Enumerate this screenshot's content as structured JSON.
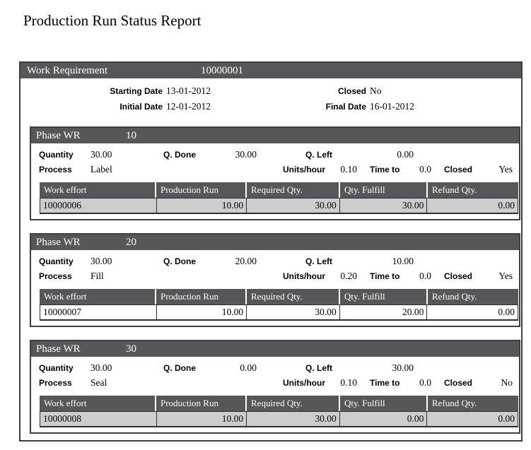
{
  "title": "Production Run Status Report",
  "work_requirement": {
    "label": "Work Requirement",
    "number": "10000001",
    "starting_date_label": "Starting Date",
    "starting_date": "13-01-2012",
    "closed_label": "Closed",
    "closed": "No",
    "initial_date_label": "Initial Date",
    "initial_date": "12-01-2012",
    "final_date_label": "Final Date",
    "final_date": "16-01-2012"
  },
  "labels": {
    "phase_wr": "Phase WR",
    "quantity": "Quantity",
    "q_done": "Q. Done",
    "q_left": "Q. Left",
    "process": "Process",
    "units_hour": "Units/hour",
    "time_to": "Time to",
    "closed": "Closed"
  },
  "table_headers": [
    "Work effort",
    "Production Run",
    "Required Qty.",
    "Qty. Fulfill",
    "Refund Qty."
  ],
  "phases": [
    {
      "number": "10",
      "quantity": "30.00",
      "q_done": "30.00",
      "q_left": "0.00",
      "process": "Label",
      "units_hour": "0.10",
      "time_to": "0.0",
      "closed": "Yes",
      "row": {
        "work_effort": "10000006",
        "production_run": "10.00",
        "required_qty": "30.00",
        "qty_fulfill": "30.00",
        "refund_qty": "0.00"
      }
    },
    {
      "number": "20",
      "quantity": "30.00",
      "q_done": "20.00",
      "q_left": "10.00",
      "process": "Fill",
      "units_hour": "0.20",
      "time_to": "0.0",
      "closed": "Yes",
      "row": {
        "work_effort": "10000007",
        "production_run": "10.00",
        "required_qty": "30.00",
        "qty_fulfill": "20.00",
        "refund_qty": "0.00"
      }
    },
    {
      "number": "30",
      "quantity": "30.00",
      "q_done": "0.00",
      "q_left": "30.00",
      "process": "Seal",
      "units_hour": "0.10",
      "time_to": "0.0",
      "closed": "No",
      "row": {
        "work_effort": "10000008",
        "production_run": "10.00",
        "required_qty": "30.00",
        "qty_fulfill": "0.00",
        "refund_qty": "0.00"
      }
    }
  ],
  "colors": {
    "bar_bg": "#57575a",
    "shaded_row_bg": "#cdcdcd",
    "border": "#3f3f3f"
  }
}
